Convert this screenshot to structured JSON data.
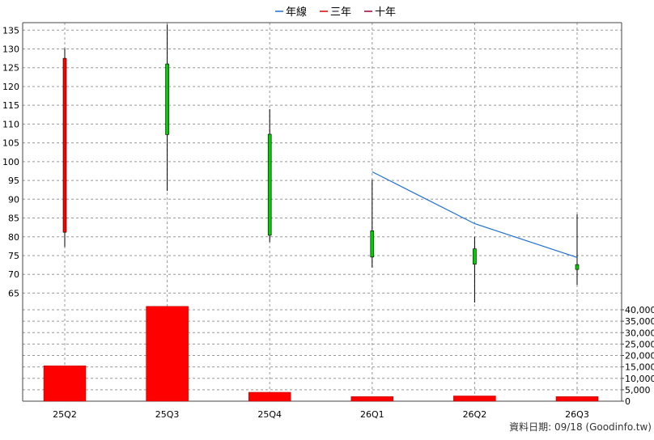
{
  "legend": [
    {
      "label": "年線",
      "color": "#1f6fd1"
    },
    {
      "label": "三年",
      "color": "#e00000"
    },
    {
      "label": "十年",
      "color": "#a00030"
    }
  ],
  "credit": "資料日期: 09/18 (Goodinfo.tw)",
  "chart_data": [
    {
      "type": "candlestick",
      "categories": [
        "25Q2",
        "25Q3",
        "25Q4",
        "26Q1",
        "26Q2",
        "26Q3"
      ],
      "ylim": [
        61,
        137
      ],
      "yticks": [
        65,
        70,
        75,
        80,
        85,
        90,
        95,
        100,
        105,
        110,
        115,
        120,
        125,
        130,
        135
      ],
      "grid": true,
      "legend_position": "top-center",
      "candles": [
        {
          "open": 81.2,
          "high": 130.2,
          "low": 77.3,
          "close": 127.5
        },
        {
          "open": 126.0,
          "high": 136.5,
          "low": 92.2,
          "close": 107.2
        },
        {
          "open": 107.3,
          "high": 114.0,
          "low": 78.6,
          "close": 80.4
        },
        {
          "open": 81.6,
          "high": 95.2,
          "low": 71.8,
          "close": 74.6
        },
        {
          "open": 76.8,
          "high": 80.0,
          "low": 62.5,
          "close": 72.7
        },
        {
          "open": 72.6,
          "high": 86.0,
          "low": 67.2,
          "close": 71.3
        }
      ],
      "up_color": "#ff0000",
      "down_color": "#00cc00",
      "series": [
        {
          "name": "年線",
          "x": [
            "26Q1",
            "26Q2",
            "26Q3"
          ],
          "values": [
            97.3,
            83.5,
            74.5
          ]
        }
      ]
    },
    {
      "type": "bar",
      "categories": [
        "25Q2",
        "25Q3",
        "25Q4",
        "26Q1",
        "26Q2",
        "26Q3"
      ],
      "values": [
        15500,
        41500,
        3900,
        2000,
        2300,
        2000
      ],
      "ylim": [
        0,
        40000
      ],
      "yticks": [
        0,
        5000,
        10000,
        15000,
        20000,
        25000,
        30000,
        35000,
        40000
      ],
      "ytick_labels": [
        "0",
        "5,000",
        "10,000",
        "15,000",
        "20,000",
        "25,000",
        "30,000",
        "35,000",
        "40,000"
      ],
      "color": "#ff0000",
      "grid": true
    }
  ]
}
